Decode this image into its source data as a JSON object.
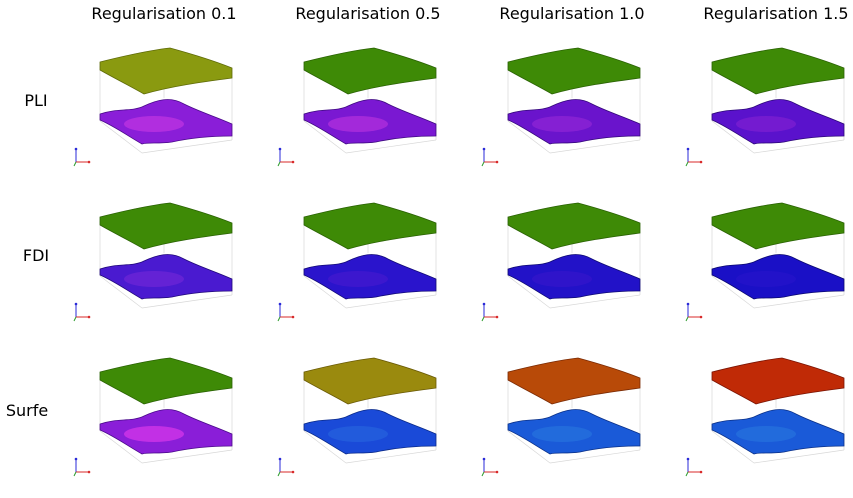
{
  "columns": [
    {
      "label": "Regularisation 0.1"
    },
    {
      "label": "Regularisation 0.5"
    },
    {
      "label": "Regularisation 1.0"
    },
    {
      "label": "Regularisation 1.5"
    }
  ],
  "rows": [
    {
      "label": "PLI"
    },
    {
      "label": "FDI"
    },
    {
      "label": "Surfe"
    }
  ],
  "cells": [
    [
      {
        "top_color": "#8a9a10",
        "top_edge": "#5e6a08",
        "bottom_color": "#8a1ed8",
        "bottom_accent": "#d23ce6",
        "bottom_edge": "#4a0a8a"
      },
      {
        "top_color": "#3e8a06",
        "top_edge": "#2a6204",
        "bottom_color": "#7a18d2",
        "bottom_accent": "#c438e0",
        "bottom_edge": "#3e0a80"
      },
      {
        "top_color": "#3e8a06",
        "top_edge": "#2a6204",
        "bottom_color": "#6a14cc",
        "bottom_accent": "#9a2ad8",
        "bottom_edge": "#34087a"
      },
      {
        "top_color": "#3e8a06",
        "top_edge": "#2a6204",
        "bottom_color": "#5a12cc",
        "bottom_accent": "#8a22d4",
        "bottom_edge": "#2c0878"
      }
    ],
    [
      {
        "top_color": "#3e8a06",
        "top_edge": "#2a6204",
        "bottom_color": "#4a1ad0",
        "bottom_accent": "#7a2ad8",
        "bottom_edge": "#20087a"
      },
      {
        "top_color": "#3e8a06",
        "top_edge": "#2a6204",
        "bottom_color": "#2a14cc",
        "bottom_accent": "#4a1ad0",
        "bottom_edge": "#120a78"
      },
      {
        "top_color": "#3e8a06",
        "top_edge": "#2a6204",
        "bottom_color": "#2212c8",
        "bottom_accent": "#3a16cc",
        "bottom_edge": "#0e0a74"
      },
      {
        "top_color": "#3e8a06",
        "top_edge": "#2a6204",
        "bottom_color": "#1a10c6",
        "bottom_accent": "#2a14cc",
        "bottom_edge": "#0a0870"
      }
    ],
    [
      {
        "top_color": "#3e8a06",
        "top_edge": "#2a6204",
        "bottom_color": "#8a1ed8",
        "bottom_accent": "#f040f0",
        "bottom_edge": "#4a0a8a"
      },
      {
        "top_color": "#9a8a0e",
        "top_edge": "#6a5a06",
        "bottom_color": "#1a4ad8",
        "bottom_accent": "#2a6ae0",
        "bottom_edge": "#0a2a8a"
      },
      {
        "top_color": "#b84a08",
        "top_edge": "#7a2a04",
        "bottom_color": "#1a5ad8",
        "bottom_accent": "#2a7ae0",
        "bottom_edge": "#0a3088"
      },
      {
        "top_color": "#c02a06",
        "top_edge": "#7a1404",
        "bottom_color": "#1a5ad8",
        "bottom_accent": "#2a7ae0",
        "bottom_edge": "#0a3088"
      }
    ]
  ]
}
